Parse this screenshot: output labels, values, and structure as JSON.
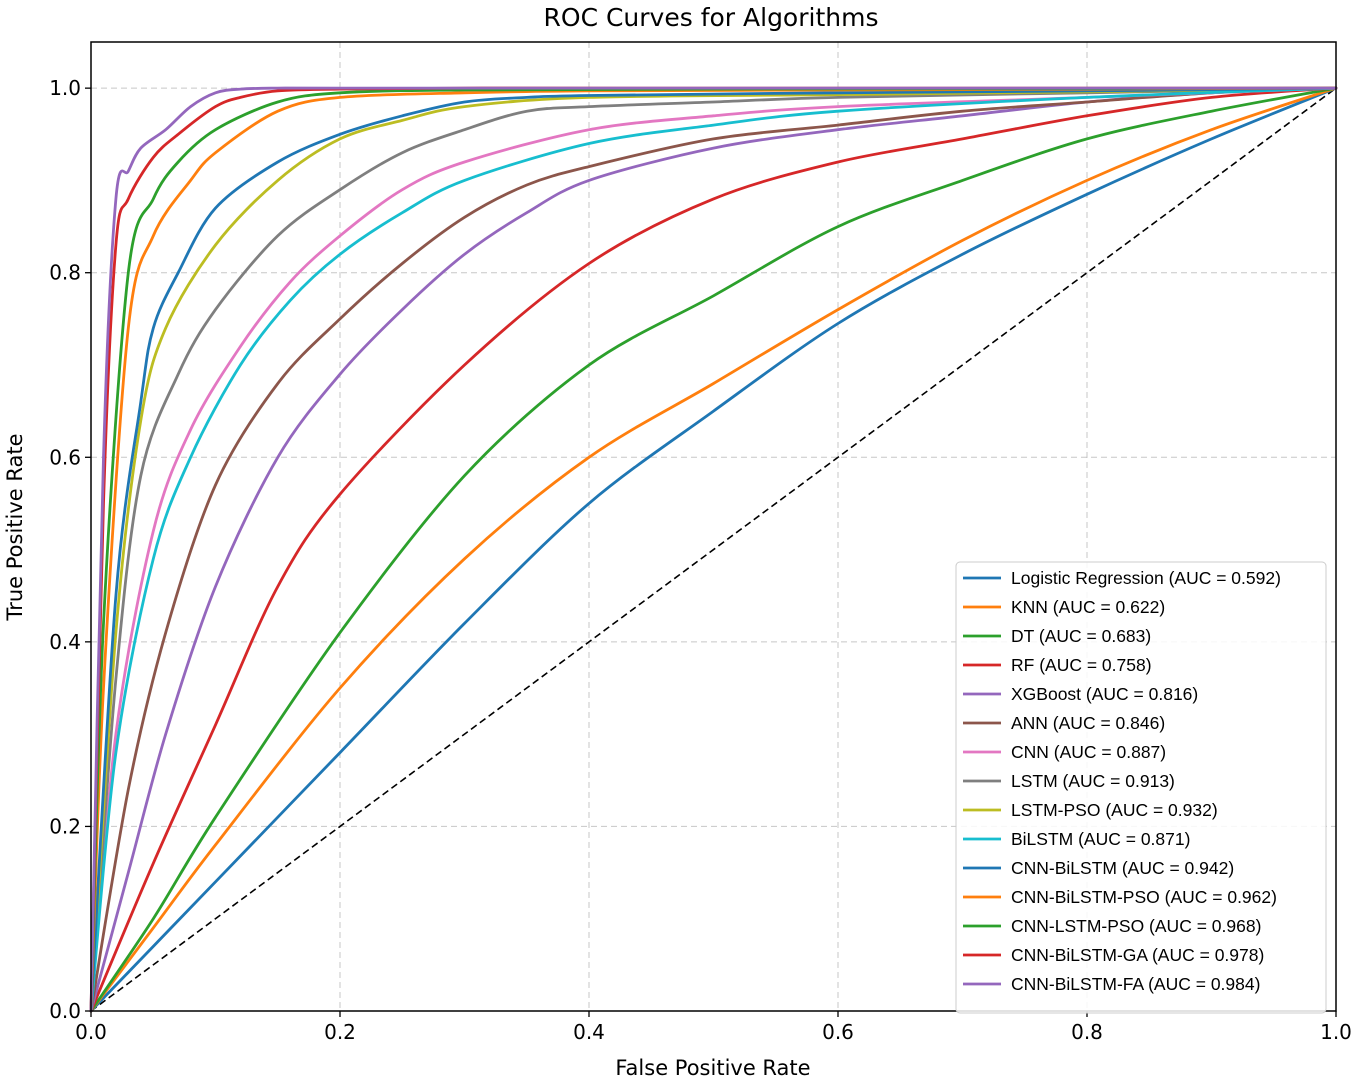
{
  "chart_data": {
    "type": "line",
    "title": "ROC Curves for Algorithms",
    "xlabel": "False Positive Rate",
    "ylabel": "True Positive Rate",
    "xlim": [
      0,
      1
    ],
    "ylim": [
      0,
      1.05
    ],
    "grid": true,
    "legend_position": "lower-right",
    "x_ticks": [
      "0.0",
      "0.2",
      "0.4",
      "0.6",
      "0.8",
      "1.0"
    ],
    "y_ticks": [
      "0.0",
      "0.2",
      "0.4",
      "0.6",
      "0.8",
      "1.0"
    ],
    "reference_line": {
      "name": "chance",
      "color": "#000000",
      "x": [
        0,
        1
      ],
      "y": [
        0,
        1
      ]
    },
    "series": [
      {
        "name": "Logistic Regression",
        "legend": "Logistic Regression (AUC = 0.592)",
        "auc": 0.592,
        "color": "#1f77b4",
        "x": [
          0,
          0.05,
          0.1,
          0.2,
          0.3,
          0.4,
          0.5,
          0.6,
          0.7,
          0.8,
          0.9,
          1.0
        ],
        "y": [
          0,
          0.07,
          0.14,
          0.28,
          0.42,
          0.55,
          0.65,
          0.745,
          0.82,
          0.885,
          0.945,
          1.0
        ]
      },
      {
        "name": "KNN",
        "legend": "KNN (AUC = 0.622)",
        "auc": 0.622,
        "color": "#ff7f0e",
        "x": [
          0,
          0.05,
          0.1,
          0.2,
          0.3,
          0.4,
          0.5,
          0.6,
          0.7,
          0.8,
          0.9,
          1.0
        ],
        "y": [
          0,
          0.09,
          0.18,
          0.35,
          0.49,
          0.6,
          0.68,
          0.76,
          0.835,
          0.9,
          0.955,
          1.0
        ]
      },
      {
        "name": "DT",
        "legend": "DT (AUC = 0.683)",
        "auc": 0.683,
        "color": "#2ca02c",
        "x": [
          0,
          0.05,
          0.1,
          0.2,
          0.3,
          0.4,
          0.5,
          0.6,
          0.7,
          0.8,
          0.9,
          1.0
        ],
        "y": [
          0,
          0.1,
          0.21,
          0.41,
          0.58,
          0.7,
          0.775,
          0.85,
          0.9,
          0.945,
          0.975,
          1.0
        ]
      },
      {
        "name": "RF",
        "legend": "RF (AUC = 0.758)",
        "auc": 0.758,
        "color": "#d62728",
        "x": [
          0,
          0.05,
          0.1,
          0.15,
          0.2,
          0.3,
          0.4,
          0.5,
          0.6,
          0.7,
          0.8,
          0.9,
          1.0
        ],
        "y": [
          0,
          0.16,
          0.31,
          0.46,
          0.56,
          0.7,
          0.81,
          0.88,
          0.92,
          0.945,
          0.97,
          0.99,
          1.0
        ]
      },
      {
        "name": "XGBoost",
        "legend": "XGBoost (AUC = 0.816)",
        "auc": 0.816,
        "color": "#9467bd",
        "x": [
          0,
          0.03,
          0.06,
          0.1,
          0.15,
          0.2,
          0.25,
          0.3,
          0.35,
          0.4,
          0.5,
          0.6,
          0.7,
          0.8,
          0.9,
          1.0
        ],
        "y": [
          0,
          0.15,
          0.3,
          0.46,
          0.6,
          0.69,
          0.76,
          0.82,
          0.865,
          0.9,
          0.935,
          0.955,
          0.97,
          0.985,
          0.995,
          1.0
        ]
      },
      {
        "name": "ANN",
        "legend": "ANN (AUC = 0.846)",
        "auc": 0.846,
        "color": "#8c564b",
        "x": [
          0,
          0.03,
          0.06,
          0.1,
          0.15,
          0.2,
          0.25,
          0.3,
          0.35,
          0.4,
          0.5,
          0.6,
          0.7,
          0.8,
          0.9,
          1.0
        ],
        "y": [
          0,
          0.24,
          0.41,
          0.57,
          0.68,
          0.75,
          0.81,
          0.86,
          0.895,
          0.915,
          0.945,
          0.96,
          0.975,
          0.985,
          0.995,
          1.0
        ]
      },
      {
        "name": "CNN",
        "legend": "CNN (AUC = 0.887)",
        "auc": 0.887,
        "color": "#e377c2",
        "x": [
          0,
          0.02,
          0.05,
          0.08,
          0.12,
          0.16,
          0.2,
          0.25,
          0.3,
          0.4,
          0.5,
          0.6,
          0.8,
          1.0
        ],
        "y": [
          0,
          0.3,
          0.52,
          0.63,
          0.72,
          0.79,
          0.84,
          0.89,
          0.92,
          0.955,
          0.97,
          0.98,
          0.99,
          1.0
        ]
      },
      {
        "name": "LSTM",
        "legend": "LSTM (AUC = 0.913)",
        "auc": 0.913,
        "color": "#7f7f7f",
        "x": [
          0,
          0.02,
          0.04,
          0.07,
          0.1,
          0.15,
          0.2,
          0.25,
          0.3,
          0.35,
          0.4,
          0.5,
          0.6,
          0.8,
          1.0
        ],
        "y": [
          0,
          0.36,
          0.58,
          0.69,
          0.76,
          0.84,
          0.89,
          0.93,
          0.955,
          0.975,
          0.98,
          0.985,
          0.99,
          0.995,
          1.0
        ]
      },
      {
        "name": "LSTM-PSO",
        "legend": "LSTM-PSO (AUC = 0.932)",
        "auc": 0.932,
        "color": "#bcbd22",
        "x": [
          0,
          0.02,
          0.04,
          0.06,
          0.1,
          0.15,
          0.2,
          0.25,
          0.3,
          0.4,
          0.6,
          0.8,
          1.0
        ],
        "y": [
          0,
          0.41,
          0.64,
          0.74,
          0.83,
          0.9,
          0.945,
          0.965,
          0.98,
          0.99,
          0.993,
          0.996,
          1.0
        ]
      },
      {
        "name": "BiLSTM",
        "legend": "BiLSTM (AUC = 0.871)",
        "auc": 0.871,
        "color": "#17becf",
        "x": [
          0,
          0.02,
          0.05,
          0.08,
          0.12,
          0.16,
          0.2,
          0.25,
          0.3,
          0.4,
          0.5,
          0.6,
          0.8,
          1.0
        ],
        "y": [
          0,
          0.28,
          0.49,
          0.6,
          0.7,
          0.77,
          0.82,
          0.865,
          0.9,
          0.94,
          0.96,
          0.975,
          0.99,
          1.0
        ]
      },
      {
        "name": "CNN-BiLSTM",
        "legend": "CNN-BiLSTM (AUC = 0.942)",
        "auc": 0.942,
        "color": "#1f77b4",
        "x": [
          0,
          0.02,
          0.04,
          0.05,
          0.07,
          0.1,
          0.15,
          0.2,
          0.25,
          0.3,
          0.35,
          0.4,
          0.6,
          0.8,
          1.0
        ],
        "y": [
          0,
          0.45,
          0.66,
          0.74,
          0.8,
          0.87,
          0.92,
          0.95,
          0.97,
          0.985,
          0.99,
          0.992,
          0.995,
          0.997,
          1.0
        ]
      },
      {
        "name": "CNN-BiLSTM-PSO",
        "legend": "CNN-BiLSTM-PSO (AUC = 0.962)",
        "auc": 0.962,
        "color": "#ff7f0e",
        "x": [
          0,
          0.01,
          0.03,
          0.05,
          0.08,
          0.1,
          0.15,
          0.2,
          0.3,
          0.4,
          0.6,
          0.8,
          1.0
        ],
        "y": [
          0,
          0.35,
          0.74,
          0.84,
          0.9,
          0.93,
          0.975,
          0.99,
          0.995,
          0.997,
          0.998,
          0.999,
          1.0
        ]
      },
      {
        "name": "CNN-LSTM-PSO",
        "legend": "CNN-LSTM-PSO (AUC = 0.968)",
        "auc": 0.968,
        "color": "#2ca02c",
        "x": [
          0,
          0.01,
          0.03,
          0.05,
          0.07,
          0.1,
          0.15,
          0.2,
          0.3,
          0.5,
          0.8,
          1.0
        ],
        "y": [
          0,
          0.42,
          0.8,
          0.88,
          0.92,
          0.955,
          0.985,
          0.995,
          0.998,
          0.999,
          0.9995,
          1.0
        ]
      },
      {
        "name": "CNN-BiLSTM-GA",
        "legend": "CNN-BiLSTM-GA (AUC = 0.978)",
        "auc": 0.978,
        "color": "#d62728",
        "x": [
          0,
          0.01,
          0.02,
          0.03,
          0.05,
          0.07,
          0.1,
          0.12,
          0.15,
          0.2,
          0.3,
          0.5,
          1.0
        ],
        "y": [
          0,
          0.55,
          0.83,
          0.88,
          0.925,
          0.95,
          0.98,
          0.99,
          0.997,
          0.999,
          1.0,
          1.0,
          1.0
        ]
      },
      {
        "name": "CNN-BiLSTM-FA",
        "legend": "CNN-BiLSTM-FA (AUC = 0.984)",
        "auc": 0.984,
        "color": "#9467bd",
        "x": [
          0,
          0.01,
          0.02,
          0.03,
          0.04,
          0.06,
          0.08,
          0.1,
          0.12,
          0.15,
          0.2,
          0.5,
          1.0
        ],
        "y": [
          0,
          0.6,
          0.88,
          0.91,
          0.935,
          0.955,
          0.98,
          0.995,
          0.999,
          1.0,
          1.0,
          1.0,
          1.0
        ]
      }
    ]
  }
}
